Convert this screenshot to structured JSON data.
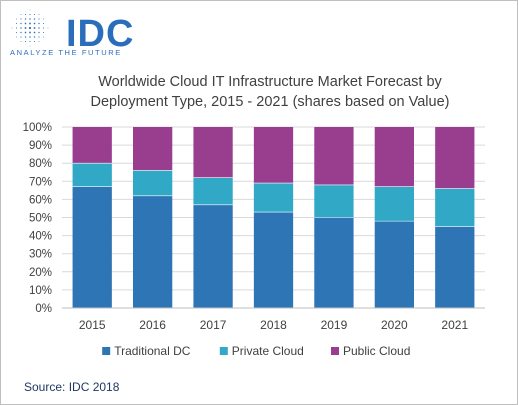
{
  "logo": {
    "name": "IDC",
    "tagline": "ANALYZE THE FUTURE",
    "color": "#2a6ebb"
  },
  "title_line1": "Worldwide Cloud IT Infrastructure Market Forecast by",
  "title_line2": "Deployment Type, 2015 - 2021 (shares based on Value)",
  "source": "Source: IDC 2018",
  "chart_data": {
    "type": "bar",
    "stacked": true,
    "title": "Worldwide Cloud IT Infrastructure Market Forecast by Deployment Type, 2015 - 2021 (shares based on Value)",
    "categories": [
      "2015",
      "2016",
      "2017",
      "2018",
      "2019",
      "2020",
      "2021"
    ],
    "series": [
      {
        "name": "Traditional DC",
        "color": "#2e75b6",
        "values": [
          67,
          62,
          57,
          53,
          50,
          48,
          45
        ]
      },
      {
        "name": "Private Cloud",
        "color": "#31a8c6",
        "values": [
          13,
          14,
          15,
          16,
          18,
          19,
          21
        ]
      },
      {
        "name": "Public Cloud",
        "color": "#993d8f",
        "values": [
          20,
          24,
          28,
          31,
          32,
          33,
          34
        ]
      }
    ],
    "ylim": [
      0,
      100
    ],
    "yticks": [
      "0%",
      "10%",
      "20%",
      "30%",
      "40%",
      "50%",
      "60%",
      "70%",
      "80%",
      "90%",
      "100%"
    ],
    "grid": true,
    "legend": "bottom"
  }
}
